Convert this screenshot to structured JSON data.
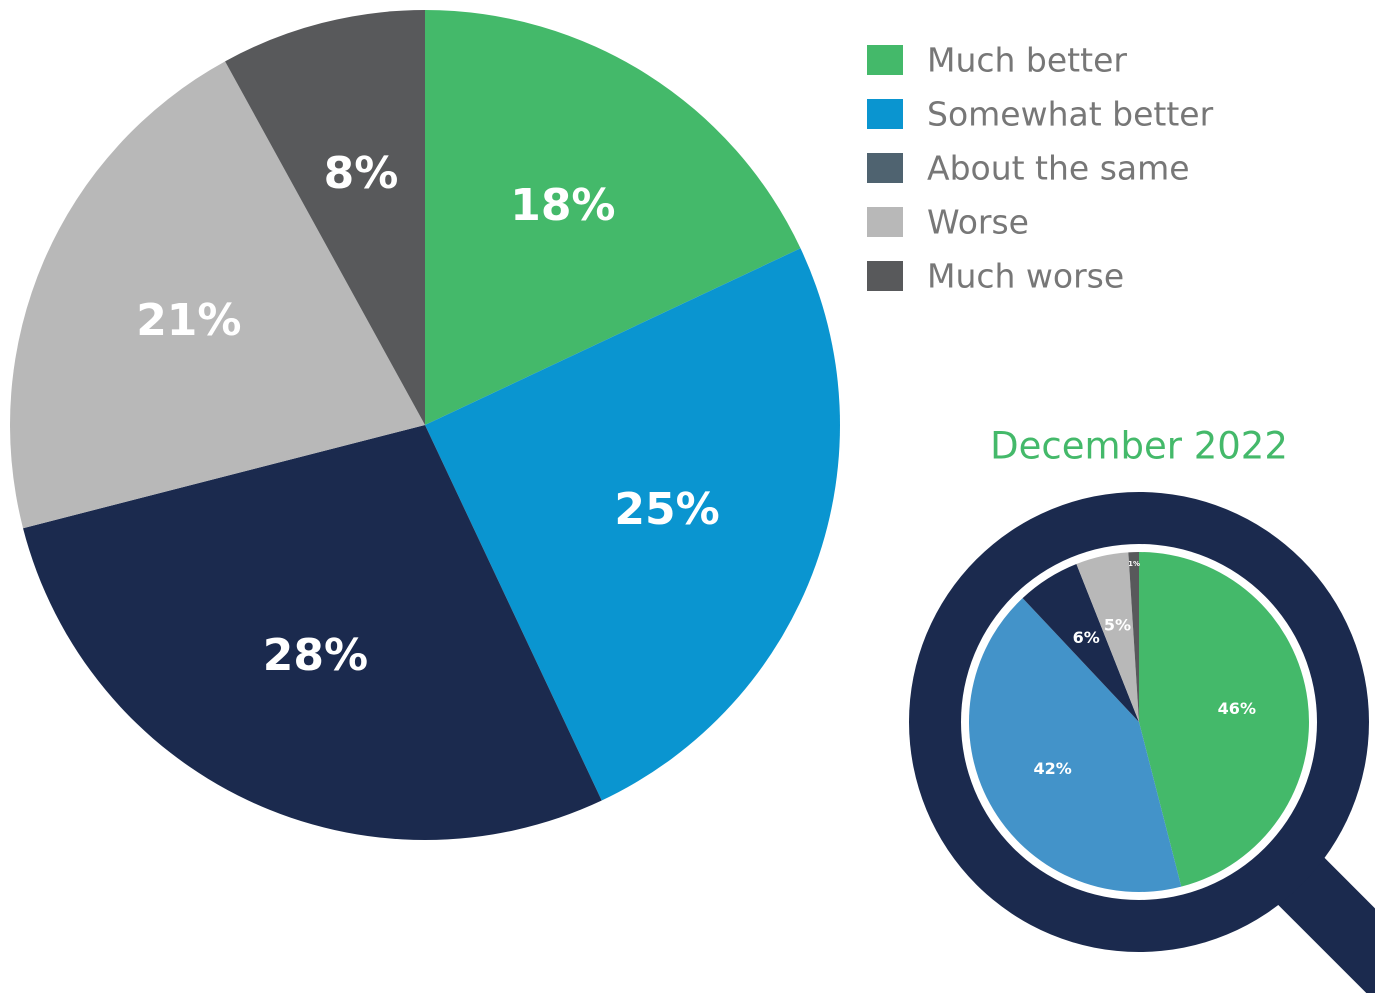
{
  "chart_data": [
    {
      "type": "pie",
      "categories": [
        "Much better",
        "Somewhat better",
        "About the same",
        "Worse",
        "Much worse"
      ],
      "values": [
        18,
        25,
        28,
        21,
        8
      ],
      "value_labels": [
        "18%",
        "25%",
        "28%",
        "21%",
        "8%"
      ],
      "colors": [
        "#44b96a",
        "#0a95d0",
        "#1b2a4e",
        "#b8b8b8",
        "#58595b"
      ],
      "legend_colors": [
        "#44b96a",
        "#0a95d0",
        "#4f6370",
        "#b8b8b8",
        "#58595b"
      ]
    },
    {
      "type": "pie",
      "title": "December 2022",
      "values": [
        46,
        42,
        6,
        5,
        1
      ],
      "value_labels": [
        "46%",
        "42%",
        "6%",
        "5%",
        "1%"
      ],
      "colors": [
        "#44b96a",
        "#4393c9",
        "#1b2a4e",
        "#b8b8b8",
        "#58595b"
      ]
    }
  ]
}
